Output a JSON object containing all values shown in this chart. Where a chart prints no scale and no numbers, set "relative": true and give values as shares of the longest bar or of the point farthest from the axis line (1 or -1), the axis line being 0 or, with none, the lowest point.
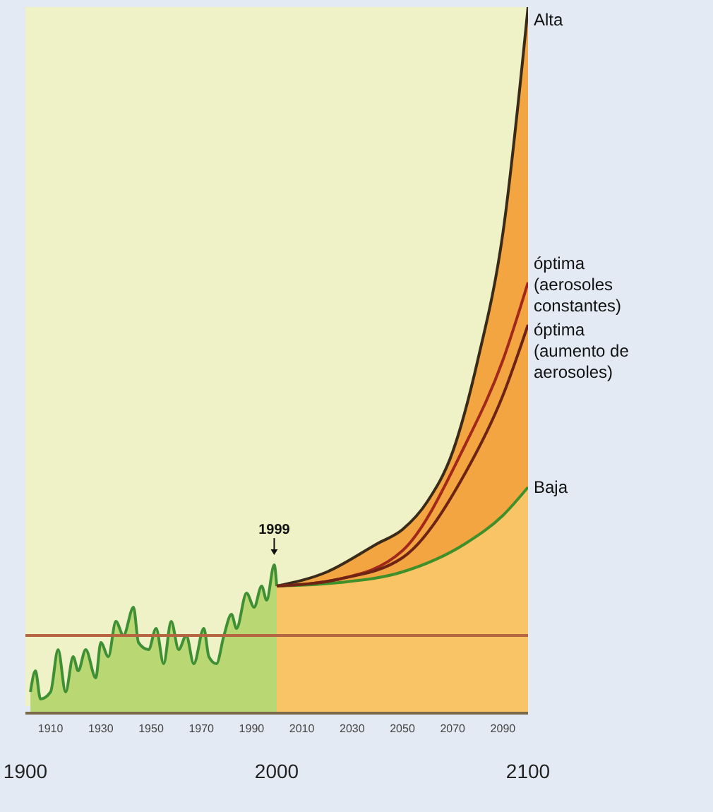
{
  "chart_data": {
    "type": "line",
    "relative": true,
    "xlim": [
      1900,
      2100
    ],
    "xticks": [
      1910,
      1930,
      1950,
      1970,
      1990,
      2010,
      2030,
      2050,
      2070,
      2090
    ],
    "x2lim": [
      1900,
      2100
    ],
    "x2ticks": [
      1900,
      2000,
      2100
    ],
    "series": [
      {
        "type": "area",
        "color": "#3f8f35",
        "x": [
          1902,
          1904,
          1906,
          1910,
          1913,
          1916,
          1919,
          1921,
          1924,
          1928,
          1930,
          1933,
          1936,
          1939,
          1943,
          1945,
          1949,
          1952,
          1955,
          1958,
          1961,
          1964,
          1967,
          1971,
          1973,
          1976,
          1979,
          1982,
          1984,
          1988,
          1991,
          1994,
          1996,
          1999,
          2000
        ],
        "values": [
          0.03,
          0.06,
          0.02,
          0.03,
          0.09,
          0.03,
          0.08,
          0.06,
          0.09,
          0.05,
          0.1,
          0.08,
          0.13,
          0.11,
          0.15,
          0.1,
          0.09,
          0.12,
          0.07,
          0.13,
          0.09,
          0.11,
          0.07,
          0.12,
          0.08,
          0.07,
          0.11,
          0.14,
          0.12,
          0.17,
          0.15,
          0.18,
          0.16,
          0.21,
          0.18
        ]
      },
      {
        "type": "area",
        "name": "Alta",
        "color": "#3a2a1a",
        "x": [
          2000,
          2020,
          2040,
          2050,
          2060,
          2070,
          2080,
          2090,
          2100
        ],
        "values": [
          0.18,
          0.2,
          0.24,
          0.26,
          0.3,
          0.37,
          0.5,
          0.68,
          1.0
        ]
      },
      {
        "name": "óptima (aerosoles constantes)",
        "color": "#a3281c",
        "x": [
          2000,
          2025,
          2050,
          2075,
          2090,
          2100
        ],
        "values": [
          0.18,
          0.19,
          0.23,
          0.38,
          0.5,
          0.61
        ]
      },
      {
        "name": "óptima (aumento de aerosoles)",
        "color": "#6e2414",
        "x": [
          2000,
          2025,
          2050,
          2075,
          2090,
          2100
        ],
        "values": [
          0.18,
          0.19,
          0.22,
          0.34,
          0.45,
          0.55
        ]
      },
      {
        "type": "area",
        "name": "Baja",
        "color": "#3f8f2a",
        "x": [
          2000,
          2025,
          2050,
          2075,
          2090,
          2100
        ],
        "values": [
          0.18,
          0.185,
          0.2,
          0.24,
          0.28,
          0.32
        ]
      }
    ],
    "ref_lines": [
      {
        "axis": "y",
        "value": 0.11,
        "color": "#b5653f"
      }
    ],
    "annotations": [
      {
        "text": "1999",
        "x": 1999,
        "y": 0.21
      }
    ]
  }
}
